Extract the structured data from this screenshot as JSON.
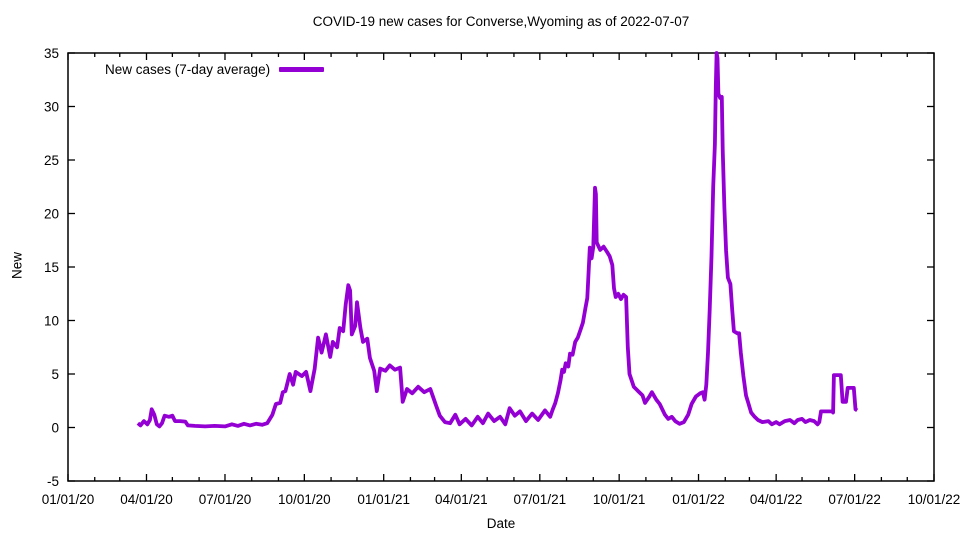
{
  "chart_data": {
    "type": "line",
    "title": "COVID-19 new cases for Converse,Wyoming as of 2022-07-07",
    "xlabel": "Date",
    "ylabel": "New",
    "legend_label": "New cases (7-day average)",
    "legend_position": "top-left",
    "grid": false,
    "line_color": "#9400d3",
    "axis_color": "#000000",
    "background_color": "#ffffff",
    "x_unit": "days since 2020-01-01",
    "xlim": [
      0,
      1004
    ],
    "ylim": [
      -5,
      35
    ],
    "x_ticks": [
      {
        "label": "01/01/20",
        "day": 0
      },
      {
        "label": "04/01/20",
        "day": 91
      },
      {
        "label": "07/01/20",
        "day": 182
      },
      {
        "label": "10/01/20",
        "day": 274
      },
      {
        "label": "01/01/21",
        "day": 366
      },
      {
        "label": "04/01/21",
        "day": 456
      },
      {
        "label": "07/01/21",
        "day": 547
      },
      {
        "label": "10/01/21",
        "day": 639
      },
      {
        "label": "01/01/22",
        "day": 731
      },
      {
        "label": "04/01/22",
        "day": 821
      },
      {
        "label": "07/01/22",
        "day": 912
      },
      {
        "label": "10/01/22",
        "day": 1004
      }
    ],
    "x_minor_ticks": [
      31,
      60,
      121,
      152,
      213,
      244,
      305,
      335,
      397,
      425,
      486,
      517,
      578,
      609,
      670,
      700,
      762,
      790,
      851,
      882,
      943,
      973
    ],
    "y_ticks": [
      -5,
      0,
      5,
      10,
      15,
      20,
      25,
      30,
      35
    ],
    "series": [
      {
        "name": "New cases (7-day average)",
        "points": [
          [
            81,
            0.4
          ],
          [
            84,
            0.2
          ],
          [
            88,
            0.6
          ],
          [
            92,
            0.3
          ],
          [
            95,
            0.7
          ],
          [
            97,
            1.7
          ],
          [
            100,
            1.2
          ],
          [
            103,
            0.3
          ],
          [
            106,
            0.1
          ],
          [
            109,
            0.4
          ],
          [
            112,
            1.1
          ],
          [
            117,
            1.0
          ],
          [
            121,
            1.1
          ],
          [
            124,
            0.6
          ],
          [
            130,
            0.6
          ],
          [
            136,
            0.55
          ],
          [
            139,
            0.2
          ],
          [
            147,
            0.15
          ],
          [
            159,
            0.1
          ],
          [
            170,
            0.15
          ],
          [
            182,
            0.1
          ],
          [
            190,
            0.3
          ],
          [
            197,
            0.15
          ],
          [
            204,
            0.35
          ],
          [
            211,
            0.2
          ],
          [
            218,
            0.35
          ],
          [
            225,
            0.25
          ],
          [
            231,
            0.4
          ],
          [
            237,
            1.2
          ],
          [
            241,
            2.2
          ],
          [
            246,
            2.3
          ],
          [
            249,
            3.3
          ],
          [
            252,
            3.4
          ],
          [
            257,
            5.0
          ],
          [
            261,
            4.0
          ],
          [
            264,
            5.2
          ],
          [
            271,
            4.8
          ],
          [
            276,
            5.2
          ],
          [
            281,
            3.4
          ],
          [
            286,
            5.5
          ],
          [
            290,
            8.4
          ],
          [
            294,
            7.0
          ],
          [
            299,
            8.7
          ],
          [
            304,
            6.6
          ],
          [
            307,
            8.0
          ],
          [
            312,
            7.5
          ],
          [
            315,
            9.3
          ],
          [
            319,
            9.0
          ],
          [
            322,
            11.5
          ],
          [
            325,
            13.3
          ],
          [
            327,
            12.8
          ],
          [
            329,
            8.7
          ],
          [
            333,
            9.5
          ],
          [
            335,
            11.7
          ],
          [
            339,
            9.3
          ],
          [
            342,
            8.0
          ],
          [
            347,
            8.3
          ],
          [
            350,
            6.5
          ],
          [
            355,
            5.3
          ],
          [
            358,
            3.4
          ],
          [
            362,
            5.5
          ],
          [
            368,
            5.3
          ],
          [
            373,
            5.8
          ],
          [
            379,
            5.4
          ],
          [
            385,
            5.6
          ],
          [
            388,
            2.4
          ],
          [
            393,
            3.6
          ],
          [
            399,
            3.2
          ],
          [
            406,
            3.8
          ],
          [
            413,
            3.3
          ],
          [
            420,
            3.6
          ],
          [
            427,
            2.0
          ],
          [
            431,
            1.1
          ],
          [
            437,
            0.5
          ],
          [
            443,
            0.4
          ],
          [
            449,
            1.2
          ],
          [
            454,
            0.3
          ],
          [
            461,
            0.8
          ],
          [
            468,
            0.2
          ],
          [
            475,
            1.0
          ],
          [
            481,
            0.4
          ],
          [
            487,
            1.3
          ],
          [
            494,
            0.6
          ],
          [
            501,
            1.0
          ],
          [
            507,
            0.3
          ],
          [
            512,
            1.8
          ],
          [
            518,
            1.1
          ],
          [
            524,
            1.5
          ],
          [
            531,
            0.6
          ],
          [
            538,
            1.3
          ],
          [
            545,
            0.7
          ],
          [
            553,
            1.6
          ],
          [
            559,
            1.0
          ],
          [
            562,
            1.7
          ],
          [
            565,
            2.3
          ],
          [
            568,
            3.2
          ],
          [
            571,
            4.4
          ],
          [
            573,
            5.4
          ],
          [
            575,
            5.2
          ],
          [
            577,
            6.0
          ],
          [
            580,
            5.7
          ],
          [
            582,
            6.9
          ],
          [
            585,
            6.8
          ],
          [
            588,
            8.0
          ],
          [
            591,
            8.4
          ],
          [
            594,
            9.1
          ],
          [
            597,
            9.8
          ],
          [
            600,
            11.2
          ],
          [
            602,
            12.1
          ],
          [
            603,
            13.6
          ],
          [
            605,
            16.8
          ],
          [
            607,
            15.8
          ],
          [
            609,
            16.9
          ],
          [
            611,
            22.4
          ],
          [
            612,
            21.8
          ],
          [
            613,
            17.3
          ],
          [
            617,
            16.6
          ],
          [
            621,
            16.9
          ],
          [
            625,
            16.4
          ],
          [
            628,
            16.0
          ],
          [
            631,
            15.2
          ],
          [
            633,
            13.0
          ],
          [
            635,
            12.2
          ],
          [
            638,
            12.5
          ],
          [
            641,
            12.0
          ],
          [
            644,
            12.4
          ],
          [
            647,
            12.2
          ],
          [
            649,
            7.5
          ],
          [
            651,
            5.0
          ],
          [
            656,
            3.8
          ],
          [
            661,
            3.4
          ],
          [
            666,
            3.0
          ],
          [
            669,
            2.3
          ],
          [
            674,
            2.9
          ],
          [
            677,
            3.3
          ],
          [
            682,
            2.6
          ],
          [
            686,
            2.2
          ],
          [
            692,
            1.2
          ],
          [
            696,
            0.8
          ],
          [
            700,
            1.0
          ],
          [
            704,
            0.6
          ],
          [
            709,
            0.35
          ],
          [
            714,
            0.5
          ],
          [
            719,
            1.2
          ],
          [
            723,
            2.2
          ],
          [
            728,
            2.9
          ],
          [
            733,
            3.2
          ],
          [
            736,
            3.3
          ],
          [
            738,
            2.6
          ],
          [
            740,
            4.0
          ],
          [
            742,
            7.0
          ],
          [
            744,
            11.0
          ],
          [
            746,
            16.0
          ],
          [
            748,
            22.5
          ],
          [
            750,
            26.5
          ],
          [
            751,
            31.8
          ],
          [
            752,
            35.0
          ],
          [
            753,
            34.5
          ],
          [
            754,
            31.2
          ],
          [
            756,
            30.8
          ],
          [
            758,
            30.9
          ],
          [
            759,
            26.0
          ],
          [
            761,
            20.5
          ],
          [
            763,
            16.5
          ],
          [
            765,
            14.0
          ],
          [
            768,
            13.4
          ],
          [
            770,
            11.0
          ],
          [
            772,
            9.0
          ],
          [
            776,
            8.8
          ],
          [
            778,
            8.8
          ],
          [
            780,
            7.0
          ],
          [
            783,
            4.8
          ],
          [
            786,
            3.0
          ],
          [
            789,
            2.2
          ],
          [
            792,
            1.4
          ],
          [
            796,
            1.0
          ],
          [
            800,
            0.7
          ],
          [
            805,
            0.5
          ],
          [
            812,
            0.6
          ],
          [
            816,
            0.3
          ],
          [
            821,
            0.5
          ],
          [
            825,
            0.3
          ],
          [
            831,
            0.6
          ],
          [
            837,
            0.7
          ],
          [
            842,
            0.4
          ],
          [
            846,
            0.7
          ],
          [
            851,
            0.8
          ],
          [
            855,
            0.5
          ],
          [
            860,
            0.7
          ],
          [
            865,
            0.6
          ],
          [
            869,
            0.3
          ],
          [
            871,
            0.5
          ],
          [
            873,
            1.5
          ],
          [
            886,
            1.5
          ],
          [
            887,
            1.4
          ],
          [
            888,
            4.9
          ],
          [
            896,
            4.9
          ],
          [
            898,
            2.4
          ],
          [
            902,
            2.4
          ],
          [
            904,
            3.7
          ],
          [
            911,
            3.7
          ],
          [
            913,
            1.7
          ],
          [
            915,
            1.6
          ]
        ]
      }
    ]
  }
}
